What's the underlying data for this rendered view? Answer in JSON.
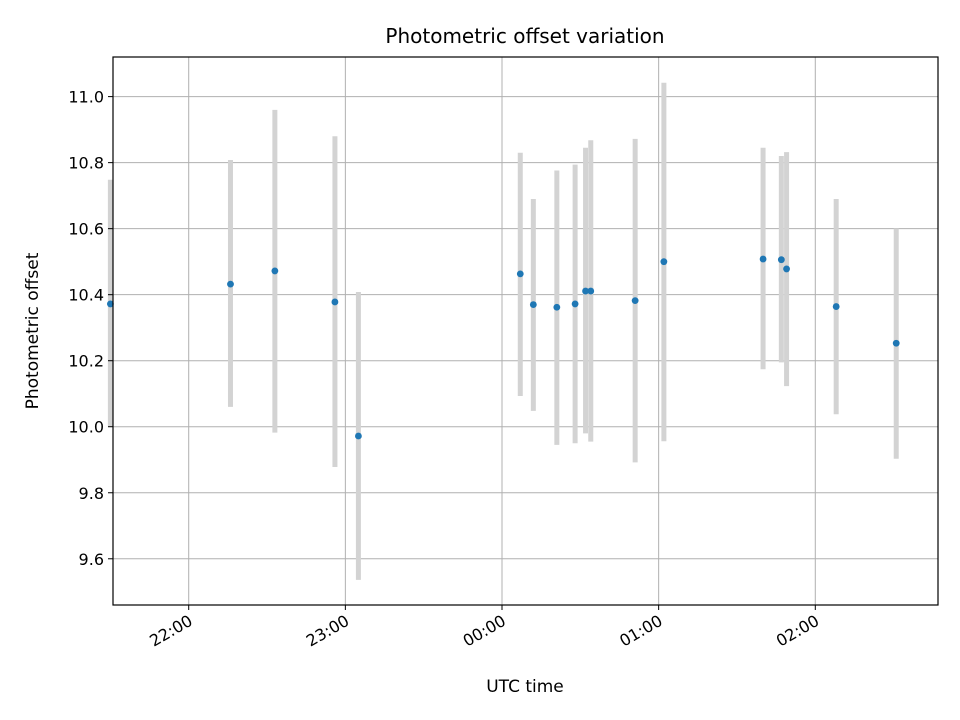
{
  "chart_data": {
    "type": "scatter",
    "title": "Photometric offset variation",
    "xlabel": "UTC time",
    "ylabel": "Photometric offset",
    "xlim": [
      "21:31",
      "02:47"
    ],
    "ylim": [
      9.46,
      11.12
    ],
    "x_ticks": [
      "22:00",
      "23:00",
      "00:00",
      "01:00",
      "02:00"
    ],
    "y_ticks": [
      "9.6",
      "9.8",
      "10.0",
      "10.2",
      "10.4",
      "10.6",
      "10.8",
      "11.0"
    ],
    "grid": true,
    "colors": {
      "point": "#1f77b4",
      "errorbar": "#d3d3d3",
      "grid": "#b0b0b0"
    },
    "points": [
      {
        "time": "21:30",
        "value": 10.372,
        "low": 10.0,
        "high": 10.748
      },
      {
        "time": "22:16",
        "value": 10.432,
        "low": 10.06,
        "high": 10.808
      },
      {
        "time": "22:33",
        "value": 10.472,
        "low": 9.982,
        "high": 10.96
      },
      {
        "time": "22:56",
        "value": 10.378,
        "low": 9.878,
        "high": 10.88
      },
      {
        "time": "23:05",
        "value": 9.972,
        "low": 9.536,
        "high": 10.408
      },
      {
        "time": "00:07",
        "value": 10.463,
        "low": 10.093,
        "high": 10.83
      },
      {
        "time": "00:12",
        "value": 10.37,
        "low": 10.048,
        "high": 10.69
      },
      {
        "time": "00:21",
        "value": 10.362,
        "low": 9.945,
        "high": 10.776
      },
      {
        "time": "00:28",
        "value": 10.372,
        "low": 9.95,
        "high": 10.794
      },
      {
        "time": "00:32",
        "value": 10.411,
        "low": 9.98,
        "high": 10.845
      },
      {
        "time": "00:34",
        "value": 10.411,
        "low": 9.955,
        "high": 10.868
      },
      {
        "time": "00:51",
        "value": 10.382,
        "low": 9.892,
        "high": 10.872
      },
      {
        "time": "01:02",
        "value": 10.5,
        "low": 9.956,
        "high": 11.042
      },
      {
        "time": "01:40",
        "value": 10.508,
        "low": 10.174,
        "high": 10.845
      },
      {
        "time": "01:47",
        "value": 10.506,
        "low": 10.195,
        "high": 10.82
      },
      {
        "time": "01:49",
        "value": 10.478,
        "low": 10.123,
        "high": 10.832
      },
      {
        "time": "02:08",
        "value": 10.364,
        "low": 10.038,
        "high": 10.69
      },
      {
        "time": "02:31",
        "value": 10.253,
        "low": 9.903,
        "high": 10.6
      }
    ]
  }
}
